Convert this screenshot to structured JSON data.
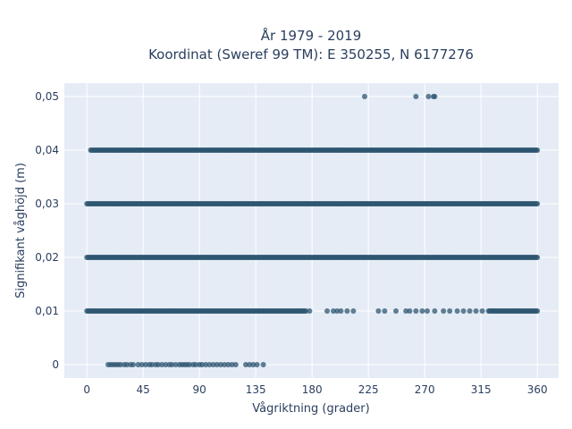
{
  "chart_data": {
    "type": "scatter",
    "title_line1": "År 1979 - 2019",
    "title_line2": "Koordinat (Sweref 99 TM): E 350255, N 6177276",
    "xlabel": "Vågriktning (grader)",
    "ylabel": "Signifikant våghöjd (m)",
    "xlim": [
      -18,
      377
    ],
    "ylim": [
      -0.0025,
      0.0525
    ],
    "x_ticks": [
      0,
      45,
      90,
      135,
      180,
      225,
      270,
      315,
      360
    ],
    "x_tick_labels": [
      "0",
      "45",
      "90",
      "135",
      "180",
      "225",
      "270",
      "315",
      "360"
    ],
    "y_ticks": [
      0,
      0.01,
      0.02,
      0.03,
      0.04,
      0.05
    ],
    "y_tick_labels": [
      "0",
      "0,01",
      "0,02",
      "0,03",
      "0,04",
      "0,05"
    ],
    "grid": true,
    "marker_color": "#2e5570",
    "plot_background": "#e5ecf6",
    "series": [
      {
        "y": 0.05,
        "x": [
          222,
          263,
          273,
          277,
          278
        ]
      },
      {
        "y": 0.04,
        "x_ranges": [
          [
            3,
            137
          ],
          [
            138,
            360
          ]
        ]
      },
      {
        "y": 0.03,
        "x_ranges": [
          [
            0,
            360
          ]
        ]
      },
      {
        "y": 0.02,
        "x_ranges": [
          [
            0,
            360
          ]
        ]
      },
      {
        "y": 0.01,
        "x_ranges": [
          [
            0,
            175
          ],
          [
            321,
            360
          ]
        ],
        "x": [
          178,
          192,
          197,
          200,
          203,
          208,
          213,
          233,
          238,
          247,
          255,
          258,
          263,
          268,
          272,
          278,
          285,
          290,
          296,
          301,
          306,
          311,
          316
        ]
      },
      {
        "y": 0,
        "x": [
          17,
          19,
          21,
          23,
          25,
          27,
          30,
          32,
          35,
          37,
          41,
          44,
          47,
          50,
          52,
          55,
          57,
          60,
          63,
          66,
          68,
          71,
          74,
          76,
          78,
          80,
          82,
          85,
          87,
          90,
          92,
          95,
          98,
          101,
          104,
          107,
          110,
          113,
          116,
          119,
          127,
          130,
          133,
          136,
          141
        ]
      }
    ]
  }
}
